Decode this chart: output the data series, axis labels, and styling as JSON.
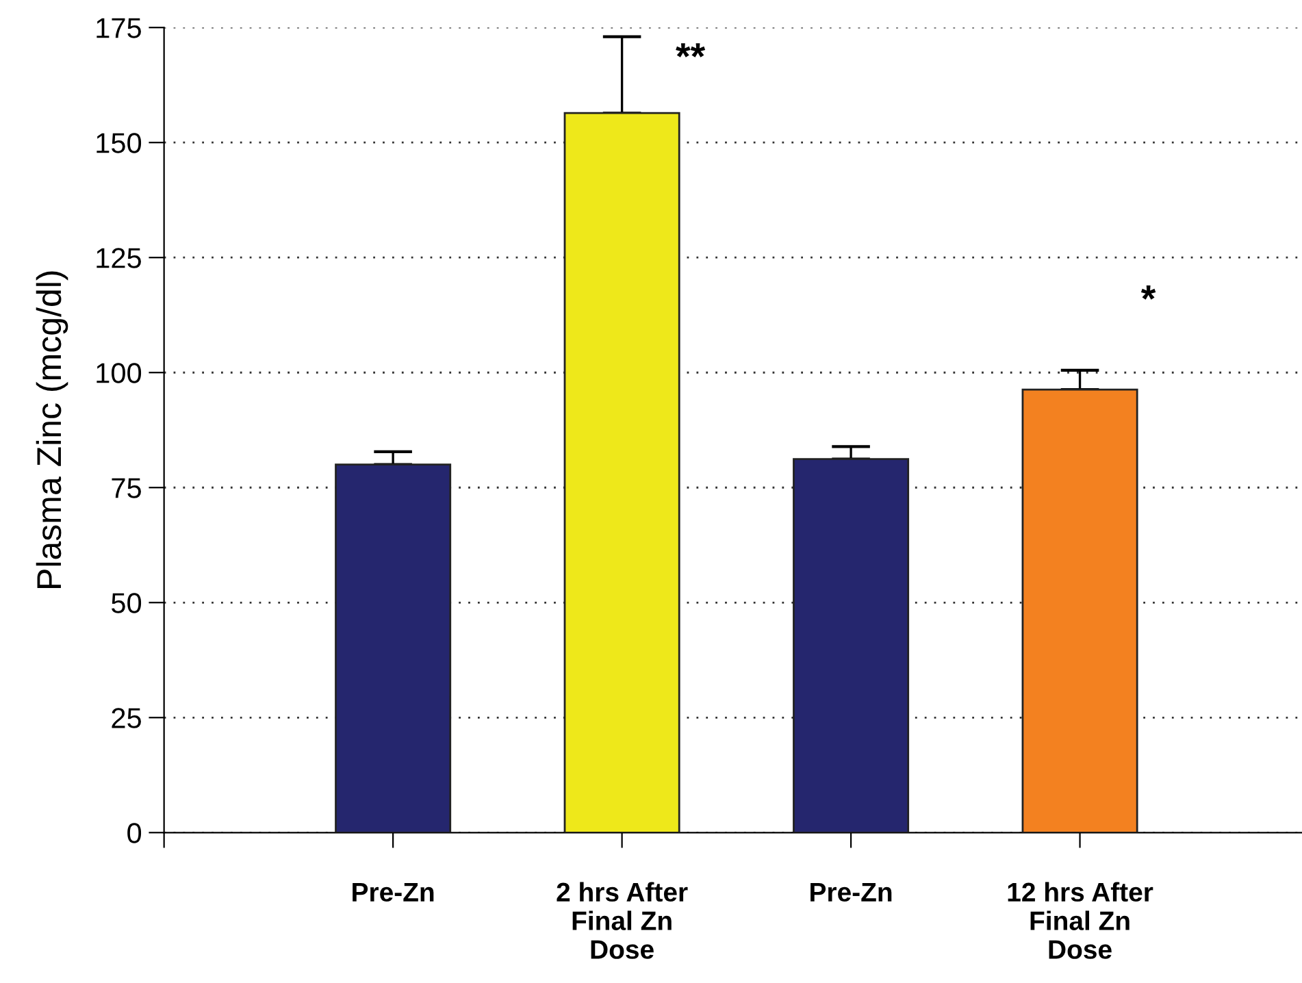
{
  "chart_data": {
    "type": "bar",
    "ylabel": "Plasma Zinc (mcg/dl)",
    "categories": [
      "Pre-Zn",
      "2 hrs After\nFinal Zn\nDose",
      "Pre-Zn",
      "12 hrs After\nFinal Zn\nDose"
    ],
    "values": [
      80,
      156.4,
      81.2,
      96.3
    ],
    "colors": [
      "#25266e",
      "#eee81a",
      "#25266e",
      "#f38120"
    ],
    "errors": [
      [
        80,
        82.8
      ],
      [
        156.4,
        173
      ],
      [
        81.2,
        83.9
      ],
      [
        96.3,
        100.5
      ]
    ],
    "ylim": [
      0,
      175
    ],
    "yticks": [
      0,
      25,
      50,
      75,
      100,
      125,
      150,
      175
    ],
    "grid": "y",
    "annotations": [
      {
        "text": "**",
        "x": "2 hrs After\nFinal Zn\nDose",
        "y": 173
      },
      {
        "text": "*",
        "x": "12 hrs After\nFinal Zn\nDose",
        "y": 100.5
      }
    ]
  }
}
